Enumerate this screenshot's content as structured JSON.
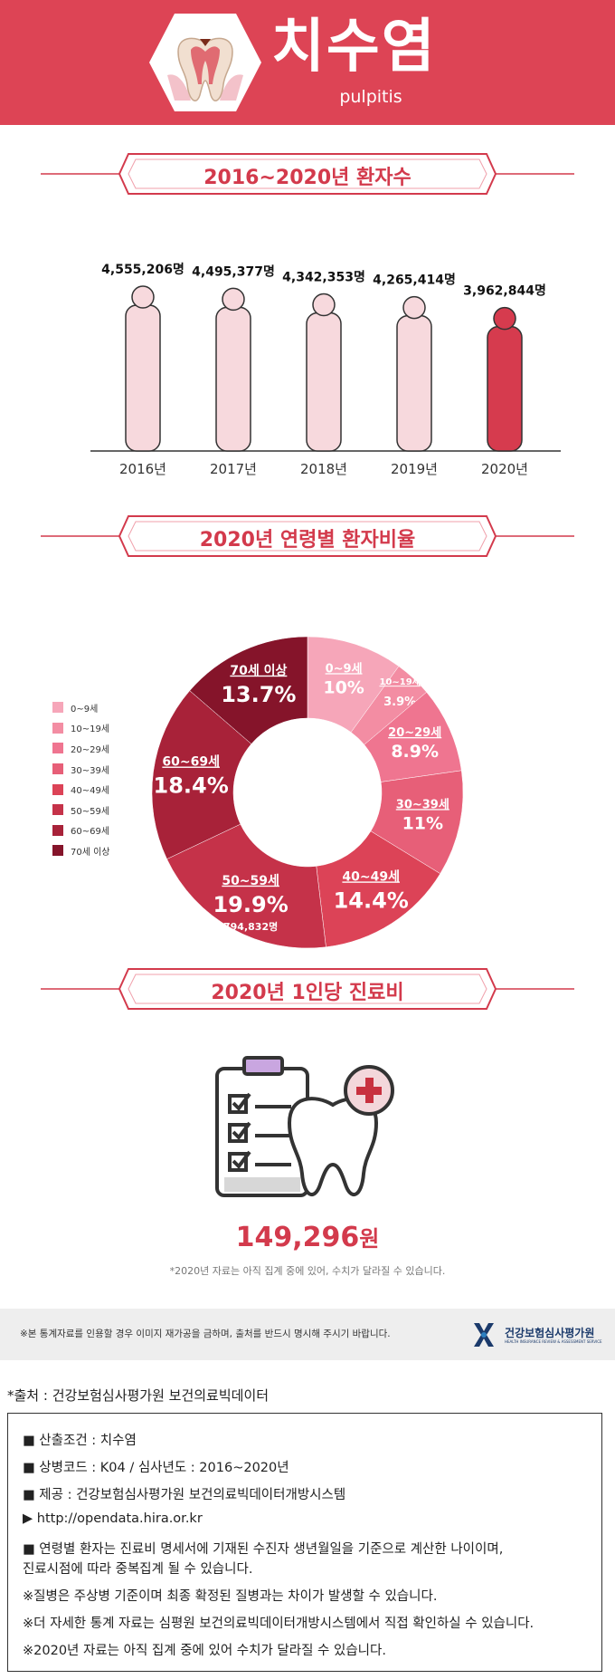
{
  "header": {
    "title": "치수염",
    "subtitle": "pulpitis",
    "icon": "tooth-icon",
    "color": "#dd4455"
  },
  "sections": {
    "patients_title": "2016~2020년 환자수",
    "age_title": "2020년 연령별 환자비율",
    "cost_title": "2020년 1인당 진료비"
  },
  "chart_data": [
    {
      "type": "bar",
      "title": "2016~2020년 환자수",
      "categories": [
        "2016년",
        "2017년",
        "2018년",
        "2019년",
        "2020년"
      ],
      "values": [
        4555206,
        4495377,
        4342353,
        4265414,
        3962844
      ],
      "value_labels": [
        "4,555,206명",
        "4,495,377명",
        "4,342,353명",
        "4,265,414명",
        "3,962,844명"
      ],
      "colors": [
        "#f7d9dd",
        "#f7d9dd",
        "#f7d9dd",
        "#f7d9dd",
        "#d63b4e"
      ],
      "mark": "person-silhouette",
      "grid": false
    },
    {
      "type": "pie",
      "title": "2020년 연령별 환자비율",
      "categories": [
        "0~9세",
        "10~19세",
        "20~29세",
        "30~39세",
        "40~49세",
        "50~59세",
        "60~69세",
        "70세 이상"
      ],
      "values": [
        10,
        3.9,
        8.9,
        11,
        14.4,
        19.9,
        18.4,
        13.7
      ],
      "value_labels": [
        "10%",
        "3.9%",
        "8.9%",
        "11%",
        "14.4%",
        "19.9%",
        "18.4%",
        "13.7%"
      ],
      "extra_labels": {
        "50~59세": "794,832명"
      },
      "colors": [
        "#f6a6b9",
        "#f38da3",
        "#ef7590",
        "#e75f78",
        "#dc4357",
        "#c53249",
        "#a82239",
        "#85142a"
      ],
      "legend": "left",
      "donut": true
    }
  ],
  "cost": {
    "value": "149,296",
    "unit": "원",
    "note": "*2020년 자료는 아직 집계 중에 있어, 수치가 달라질 수 있습니다."
  },
  "footer": {
    "notice": "※본 통계자료를 인용할 경우 이미지 재가공을 금하며, 출처를 반드시 명시해 주시기 바랍니다.",
    "org_name": "건강보험심사평가원",
    "org_sub": "HEALTH INSURANCE REVIEW & ASSESSMENT SERVICE",
    "source": "*출처 : 건강보험심사평가원 보건의료빅데이터"
  },
  "notes": [
    "■ 산출조건 : 치수염",
    "■ 상병코드 : K04 / 심사년도 : 2016~2020년",
    "■ 제공 : 건강보험심사평가원 보건의료빅데이터개방시스템",
    "▶ http://opendata.hira.or.kr",
    "■ 연령별 환자는 진료비 명세서에 기재된 수진자 생년월일을 기준으로 계산한 나이이며,",
    "   진료시점에 따라 중복집계 될 수 있습니다.",
    "※질병은 주상병 기준이며 최종 확정된 질병과는 차이가 발생할 수 있습니다.",
    "※더 자세한 통계 자료는 심평원 보건의료빅데이터개방시스템에서 직접 확인하실 수 있습니다.",
    "※2020년 자료는 아직 집계 중에 있어 수치가 달라질 수 있습니다."
  ]
}
